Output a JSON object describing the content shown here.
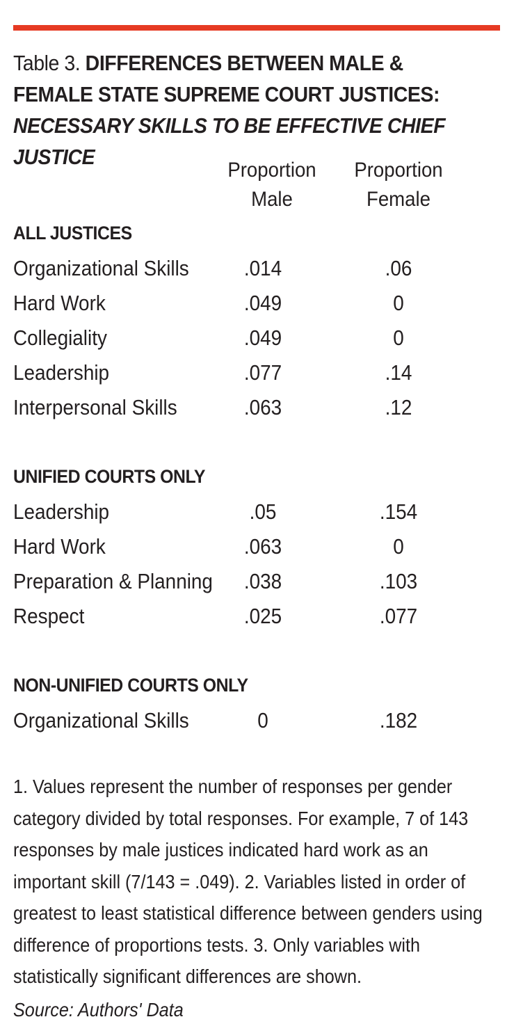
{
  "title": {
    "prefix": "Table 3. ",
    "bold_line": "DIFFERENCES BETWEEN MALE & FEMALE STATE SUPREME COURT JUSTICES: ",
    "italic_part": "NECESSARY SKILLS TO BE EFFECTIVE CHIEF JUSTICE"
  },
  "columns": {
    "male_line1": "Proportion",
    "male_line2": "Male",
    "female_line1": "Proportion",
    "female_line2": "Female"
  },
  "sections": [
    {
      "heading": "ALL JUSTICES",
      "rows": [
        {
          "label": "Organizational Skills",
          "male": ".014",
          "female": ".06"
        },
        {
          "label": "Hard Work",
          "male": ".049",
          "female": "0"
        },
        {
          "label": "Collegiality",
          "male": ".049",
          "female": "0"
        },
        {
          "label": "Leadership",
          "male": ".077",
          "female": ".14"
        },
        {
          "label": "Interpersonal Skills",
          "male": ".063",
          "female": ".12"
        }
      ]
    },
    {
      "heading": "UNIFIED COURTS ONLY",
      "rows": [
        {
          "label": "Leadership",
          "male": ".05",
          "female": ".154"
        },
        {
          "label": "Hard Work",
          "male": ".063",
          "female": "0"
        },
        {
          "label": "Preparation & Planning",
          "male": ".038",
          "female": ".103"
        },
        {
          "label": "Respect",
          "male": ".025",
          "female": ".077"
        }
      ]
    },
    {
      "heading": "NON-UNIFIED COURTS ONLY",
      "rows": [
        {
          "label": "Organizational Skills",
          "male": "0",
          "female": ".182"
        }
      ]
    }
  ],
  "notes": "1. Values represent the number of responses per gender category divided by total responses. For example, 7 of 143 responses by male justices indicated hard work as an important skill (7/143 = .049). 2. Variables listed in order of greatest to least statistical difference between genders using difference of proportions tests.  3. Only variables with statistically significant differences are shown.",
  "source": "Source: Authors' Data",
  "colors": {
    "accent_rule": "#e63a23",
    "text": "#231f20"
  }
}
